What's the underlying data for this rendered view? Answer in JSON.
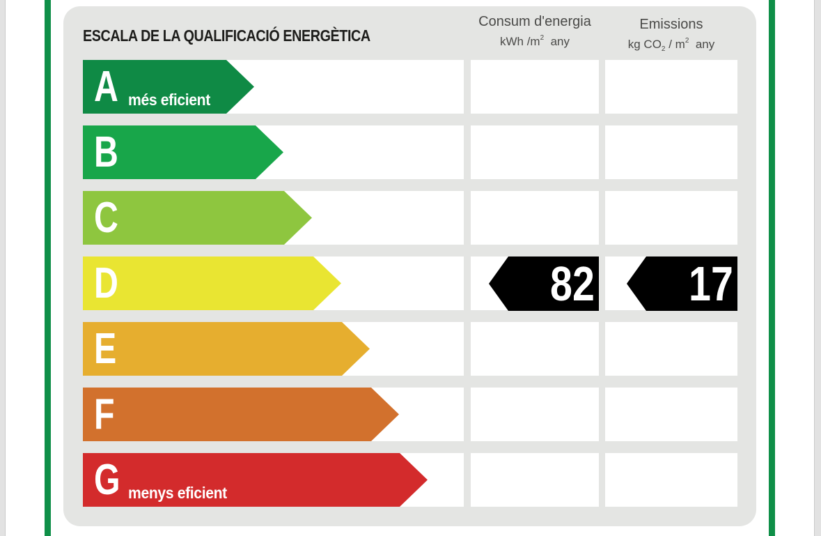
{
  "title": "ESCALA DE LA QUALIFICACIÓ ENERGÈTICA",
  "columns": {
    "consum": {
      "label": "Consum d'energia",
      "unit_pre": "kWh /m",
      "unit_sup": "2",
      "unit_post": "any"
    },
    "emissions": {
      "label": "Emissions",
      "unit_pre": "kg CO",
      "unit_sub": "2",
      "unit_mid": " / m",
      "unit_sup": "2",
      "unit_post": "any"
    }
  },
  "classes": [
    {
      "letter": "A",
      "sublabel": "més eficient",
      "color": "#0f8a45"
    },
    {
      "letter": "B",
      "sublabel": "",
      "color": "#18a64a"
    },
    {
      "letter": "C",
      "sublabel": "",
      "color": "#8ec63f"
    },
    {
      "letter": "D",
      "sublabel": "",
      "color": "#e9e532"
    },
    {
      "letter": "E",
      "sublabel": "",
      "color": "#e6ae2f"
    },
    {
      "letter": "F",
      "sublabel": "",
      "color": "#d2712d"
    },
    {
      "letter": "G",
      "sublabel": "menys eficient",
      "color": "#d32b2c"
    }
  ],
  "rating": {
    "class": "D",
    "consum_value": "82",
    "emissions_value": "17",
    "marker_color": "#000000"
  },
  "frame_color": "#0f8f48"
}
